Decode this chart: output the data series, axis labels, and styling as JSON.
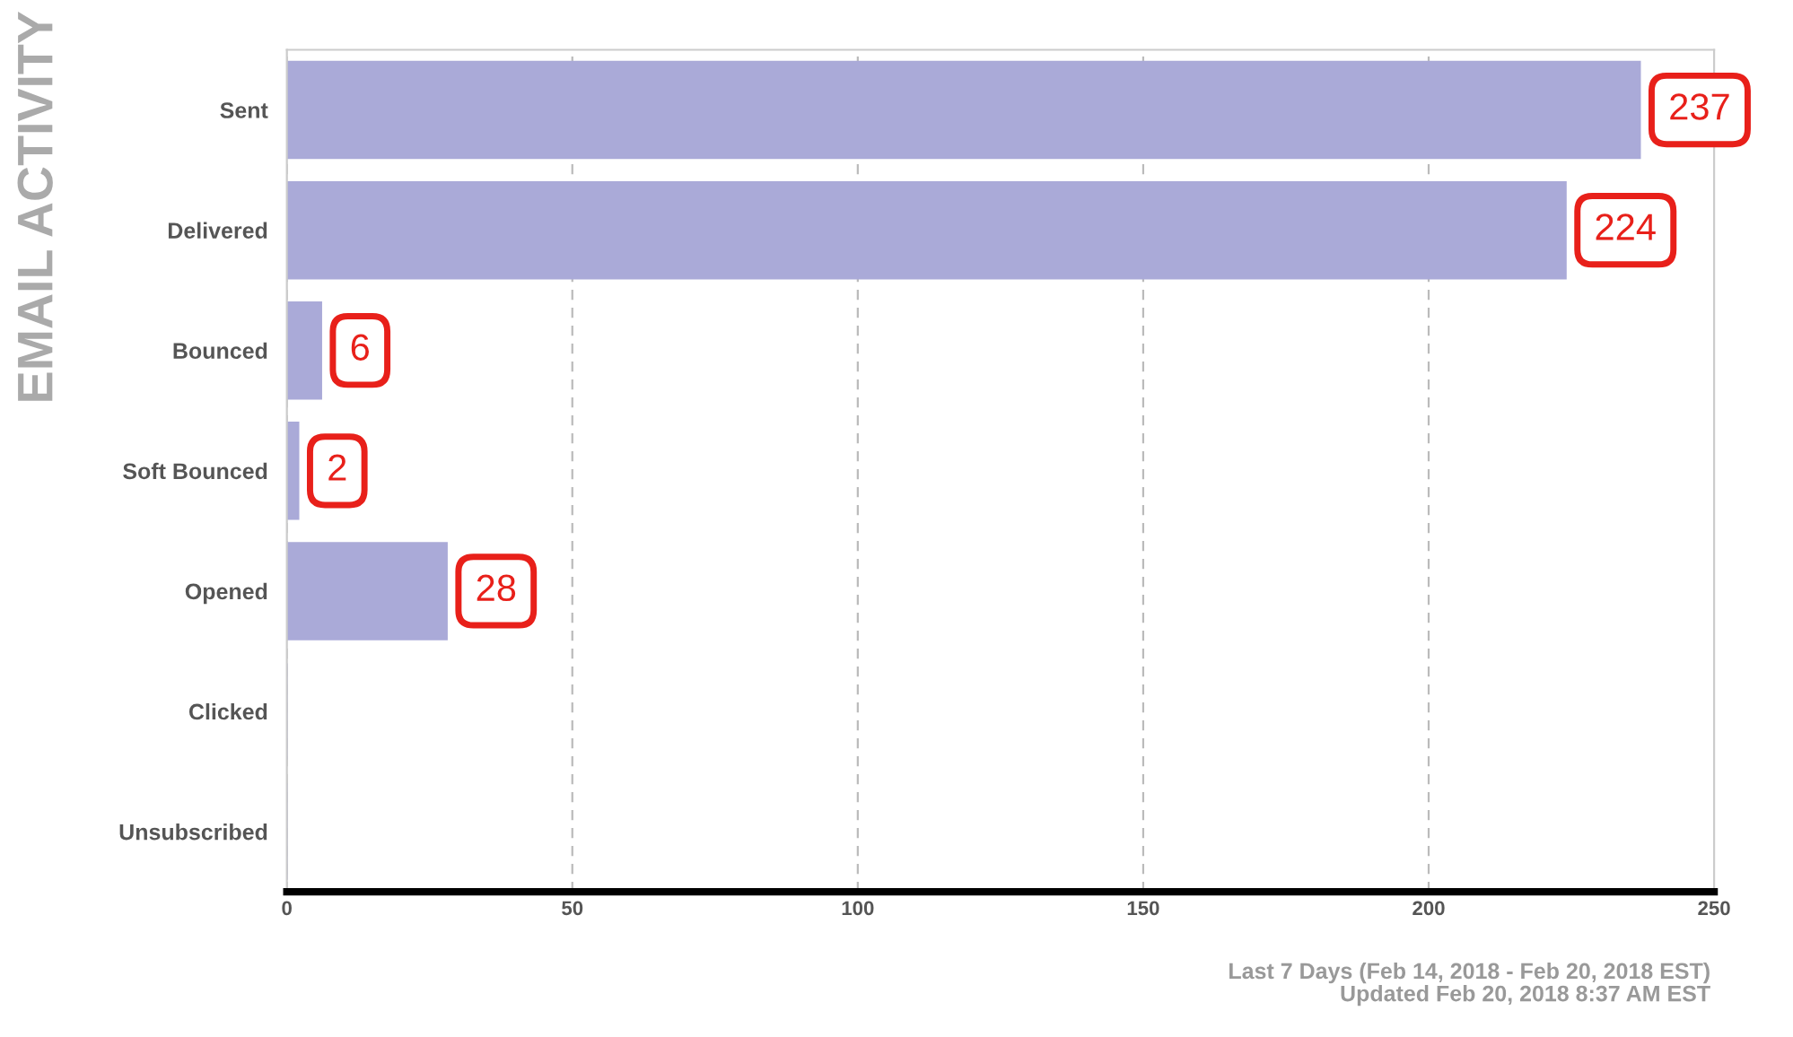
{
  "chart_data": {
    "type": "bar",
    "orientation": "horizontal",
    "title": "EMAIL ACTIVITY",
    "categories": [
      "Sent",
      "Delivered",
      "Bounced",
      "Soft Bounced",
      "Opened",
      "Clicked",
      "Unsubscribed"
    ],
    "values": [
      237,
      224,
      6,
      2,
      28,
      0,
      0
    ],
    "value_labels": [
      "237",
      "224",
      "6",
      "2",
      "28",
      null,
      null
    ],
    "color": "#aaaad8",
    "xlim": [
      0,
      250
    ],
    "xticks": [
      0,
      50,
      100,
      150,
      200,
      250
    ],
    "grid": "x",
    "annotations": [
      "Last 7 Days (Feb 14, 2018 - Feb 20, 2018 EST)\nUpdated Feb 20, 2018 8:37 AM EST"
    ]
  }
}
